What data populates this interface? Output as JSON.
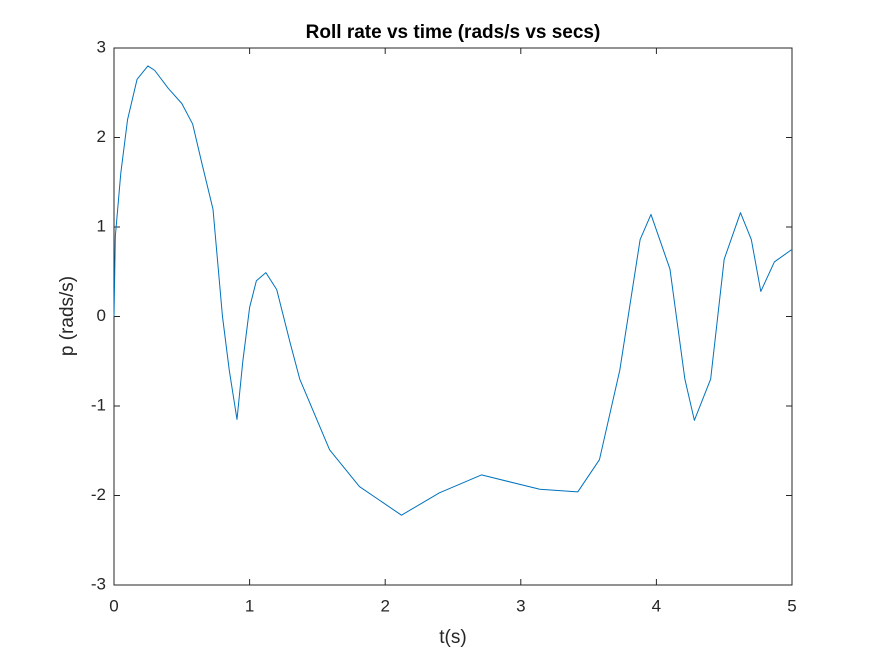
{
  "chart_data": {
    "type": "line",
    "title": "Roll rate vs time (rads/s vs secs)",
    "xlabel": "t(s)",
    "ylabel": "p (rads/s)",
    "xlim": [
      0,
      5
    ],
    "ylim": [
      -3,
      3
    ],
    "xticks": [
      0,
      1,
      2,
      3,
      4,
      5
    ],
    "yticks": [
      -3,
      -2,
      -1,
      0,
      1,
      2,
      3
    ],
    "grid": false,
    "x": [
      0,
      0.01,
      0.05,
      0.1,
      0.17,
      0.25,
      0.3,
      0.4,
      0.5,
      0.58,
      0.65,
      0.73,
      0.8,
      0.85,
      0.907,
      0.95,
      1.0,
      1.05,
      1.12,
      1.2,
      1.3,
      1.37,
      1.59,
      1.81,
      2.12,
      2.4,
      2.71,
      3.14,
      3.42,
      3.58,
      3.73,
      3.88,
      3.96,
      4.1,
      4.21,
      4.28,
      4.4,
      4.5,
      4.62,
      4.7,
      4.77,
      4.87,
      5.0
    ],
    "series": [
      {
        "name": "p",
        "color": "#0072bd",
        "values": [
          0,
          0.9,
          1.6,
          2.2,
          2.65,
          2.8,
          2.75,
          2.55,
          2.38,
          2.15,
          1.7,
          1.2,
          0,
          -0.6,
          -1.15,
          -0.5,
          0.1,
          0.4,
          0.49,
          0.3,
          -0.3,
          -0.7,
          -1.49,
          -1.9,
          -2.22,
          -1.97,
          -1.77,
          -1.93,
          -1.96,
          -1.6,
          -0.6,
          0.86,
          1.14,
          0.53,
          -0.7,
          -1.16,
          -0.7,
          0.64,
          1.16,
          0.86,
          0.28,
          0.61,
          0.75
        ]
      }
    ]
  }
}
